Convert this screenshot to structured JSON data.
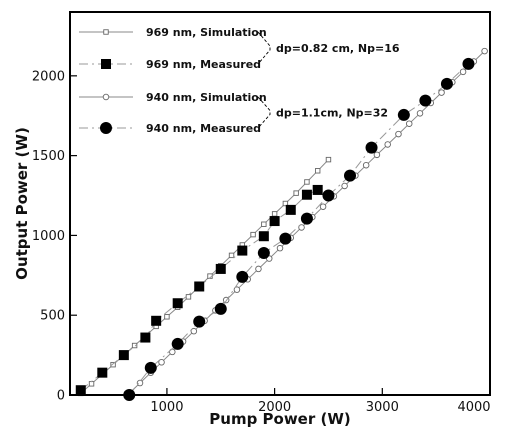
{
  "chart_data": {
    "type": "line",
    "xlabel": "Pump Power (W)",
    "ylabel": "Output Power (W)",
    "xlim": [
      100,
      4000
    ],
    "ylim": [
      0,
      2400
    ],
    "x_ticks": [
      1000,
      2000,
      3000,
      4000
    ],
    "y_ticks": [
      0,
      500,
      1000,
      1500,
      2000
    ],
    "x_tick_labels": [
      "1000",
      "2000",
      "3000",
      "4000"
    ],
    "y_tick_labels": [
      "0",
      "500",
      "1000",
      "1500",
      "2000"
    ],
    "grid": false,
    "legend_placement": "top-left",
    "series": [
      {
        "name": "969 nm, Simulation",
        "style": "sim",
        "marker": "square",
        "x": [
          200,
          300,
          400,
          500,
          600,
          700,
          800,
          900,
          1000,
          1100,
          1200,
          1300,
          1400,
          1500,
          1600,
          1700,
          1800,
          1900,
          2000,
          2100,
          2200,
          2300,
          2400,
          2500
        ],
        "y": [
          10,
          70,
          130,
          190,
          250,
          310,
          370,
          430,
          490,
          550,
          615,
          680,
          745,
          810,
          875,
          940,
          1005,
          1070,
          1135,
          1200,
          1265,
          1335,
          1405,
          1475
        ]
      },
      {
        "name": "969 nm, Measured",
        "style": "meas",
        "marker": "square",
        "x": [
          200,
          400,
          600,
          800,
          900,
          1100,
          1300,
          1500,
          1700,
          1900,
          2000,
          2150,
          2300,
          2400
        ],
        "y": [
          30,
          140,
          250,
          360,
          465,
          575,
          680,
          790,
          905,
          995,
          1090,
          1160,
          1255,
          1285
        ]
      },
      {
        "name": "940 nm, Simulation",
        "style": "sim",
        "marker": "circle",
        "x": [
          650,
          750,
          850,
          950,
          1050,
          1150,
          1250,
          1350,
          1450,
          1550,
          1650,
          1750,
          1850,
          1950,
          2050,
          2150,
          2250,
          2350,
          2450,
          2550,
          2650,
          2750,
          2850,
          2950,
          3050,
          3150,
          3250,
          3350,
          3450,
          3550,
          3650,
          3750,
          3850,
          3950
        ],
        "y": [
          10,
          75,
          140,
          205,
          270,
          335,
          400,
          465,
          530,
          595,
          660,
          725,
          790,
          855,
          920,
          985,
          1050,
          1115,
          1180,
          1245,
          1310,
          1375,
          1440,
          1505,
          1570,
          1635,
          1700,
          1765,
          1830,
          1895,
          1960,
          2025,
          2090,
          2155
        ]
      },
      {
        "name": "940 nm, Measured",
        "style": "meas",
        "marker": "circle",
        "x": [
          650,
          850,
          1100,
          1300,
          1500,
          1700,
          1900,
          2100,
          2300,
          2500,
          2700,
          2900,
          3200,
          3400,
          3600,
          3800
        ],
        "y": [
          0,
          170,
          320,
          460,
          540,
          740,
          890,
          980,
          1105,
          1250,
          1375,
          1550,
          1755,
          1845,
          1950,
          2075
        ]
      }
    ],
    "annotations": [
      {
        "text": "dp=0.82 cm, Np=16",
        "groups": [
          0,
          1
        ]
      },
      {
        "text": "dp=1.1cm, Np=32",
        "groups": [
          2,
          3
        ]
      }
    ]
  }
}
